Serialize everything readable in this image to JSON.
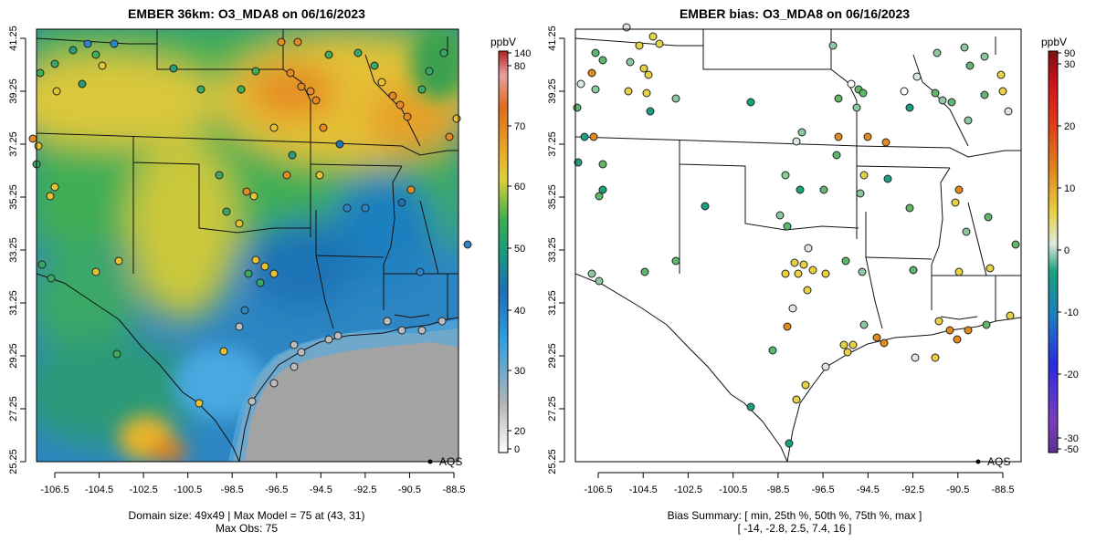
{
  "panels": [
    {
      "title": "EMBER 36km: O3_MDA8 on 06/16/2023",
      "footer_line1": "Domain size: 49x49 | Max Model = 75 at (43, 31)",
      "footer_line2": "Max Obs: 75",
      "legend_marker_label": "AQS",
      "colorbar_unit": "ppbV",
      "colorbar_ticks": [
        "140",
        "80",
        "70",
        "60",
        "50",
        "40",
        "30",
        "20",
        "0"
      ]
    },
    {
      "title": "EMBER bias: O3_MDA8 on 06/16/2023",
      "footer_line1": "Bias Summary: [ min, 25th %, 50th %, 75th %, max ]",
      "footer_line2": "[ -14,   -2.8,   2.5,   7.4,   16 ]",
      "legend_marker_label": "AQS",
      "colorbar_unit": "ppbV",
      "colorbar_ticks": [
        "90",
        "30",
        "20",
        "10",
        "0",
        "-10",
        "-20",
        "-30",
        "-50"
      ]
    }
  ],
  "axes": {
    "x_ticks": [
      "-106.5",
      "-104.5",
      "-102.5",
      "-100.5",
      "-98.5",
      "-96.5",
      "-94.5",
      "-92.5",
      "-90.5",
      "-88.5"
    ],
    "y_ticks": [
      "41.25",
      "39.25",
      "37.25",
      "35.25",
      "33.25",
      "31.25",
      "29.25",
      "27.25",
      "25.25"
    ]
  },
  "chart_data": [
    {
      "type": "heatmap",
      "title": "EMBER 36km: O3_MDA8 on 06/16/2023",
      "x_range": [
        -107.2,
        -88.1
      ],
      "y_range": [
        25.25,
        41.6
      ],
      "colorbar_label": "ppbV",
      "colorbar_range": [
        0,
        140
      ],
      "grid_size": "49x49",
      "max_model": 75,
      "max_model_cell": [
        43,
        31
      ],
      "max_obs": 75,
      "marker_legend": "AQS",
      "regions": [
        {
          "name": "",
          "lon": -95.3,
          "lat": 39.1,
          "value": 72
        },
        {
          "name": "",
          "lon": -91.5,
          "lat": 38.2,
          "value": 70
        },
        {
          "name": "",
          "lon": -96.0,
          "lat": 37.5,
          "value": 62
        },
        {
          "name": "",
          "lon": -101.5,
          "lat": 34.5,
          "value": 58
        },
        {
          "name": "",
          "lon": -93.5,
          "lat": 32.0,
          "value": 42
        },
        {
          "name": "",
          "lon": -92.0,
          "lat": 28.5,
          "value": 26
        },
        {
          "name": "",
          "lon": -101.0,
          "lat": 26.3,
          "value": 66
        }
      ]
    },
    {
      "type": "scatter",
      "title": "EMBER bias: O3_MDA8 on 06/16/2023",
      "x_range": [
        -107.2,
        -88.1
      ],
      "y_range": [
        25.25,
        41.6
      ],
      "colorbar_label": "ppbV",
      "colorbar_range": [
        -50,
        90
      ],
      "summary": {
        "min": -14,
        "p25": -2.8,
        "p50": 2.5,
        "p75": 7.4,
        "max": 16
      },
      "marker_legend": "AQS"
    }
  ]
}
